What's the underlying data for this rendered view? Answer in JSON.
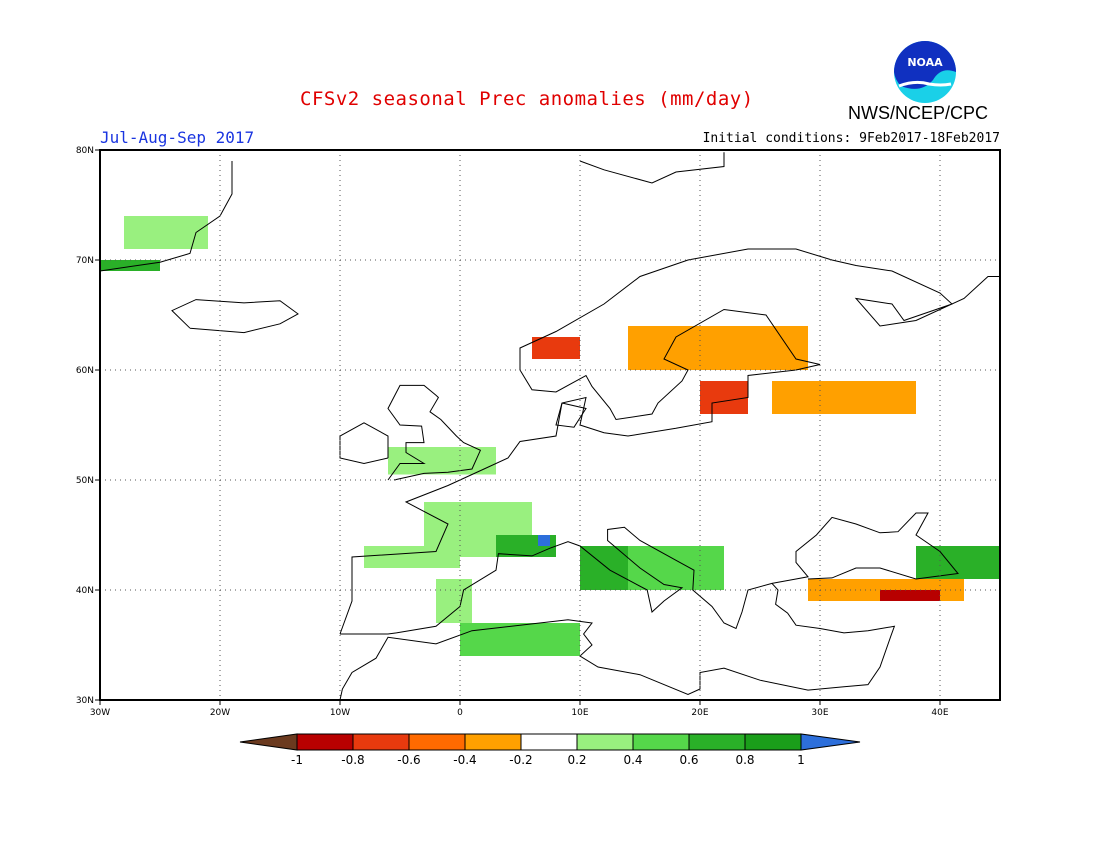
{
  "title": "CFSv2 seasonal Prec anomalies (mm/day)",
  "period": "Jul-Aug-Sep 2017",
  "initial_conditions": "Initial conditions: 9Feb2017-18Feb2017",
  "agency": "NWS/NCEP/CPC",
  "logo": {
    "text": "NOAA",
    "icon": "noaa-logo"
  },
  "map": {
    "lon_range": [
      -30,
      45
    ],
    "lat_range": [
      30,
      80
    ],
    "lat_ticks": [
      {
        "value": 80,
        "label": "80N"
      },
      {
        "value": 70,
        "label": "70N"
      },
      {
        "value": 60,
        "label": "60N"
      },
      {
        "value": 50,
        "label": "50N"
      },
      {
        "value": 40,
        "label": "40N"
      },
      {
        "value": 30,
        "label": "30N"
      }
    ],
    "lon_ticks": [
      {
        "value": -30,
        "label": "30W"
      },
      {
        "value": -20,
        "label": "20W"
      },
      {
        "value": -10,
        "label": "10W"
      },
      {
        "value": 0,
        "label": "0"
      },
      {
        "value": 10,
        "label": "10E"
      },
      {
        "value": 20,
        "label": "20E"
      },
      {
        "value": 30,
        "label": "30E"
      },
      {
        "value": 40,
        "label": "40E"
      }
    ],
    "grid": "dotted",
    "anomaly_regions": [
      {
        "name": "greenland-east",
        "level": 0.3,
        "lon": [
          -28,
          -21
        ],
        "lat": [
          71,
          74
        ]
      },
      {
        "name": "greenland-se",
        "level": 0.7,
        "lon": [
          -30,
          -25
        ],
        "lat": [
          69,
          70
        ]
      },
      {
        "name": "british-isles",
        "level": 0.3,
        "lon": [
          -6,
          3
        ],
        "lat": [
          50.5,
          53
        ]
      },
      {
        "name": "france",
        "level": 0.3,
        "lon": [
          -3,
          6
        ],
        "lat": [
          43,
          48
        ]
      },
      {
        "name": "gulf-of-lion",
        "level": 0.7,
        "lon": [
          3,
          8
        ],
        "lat": [
          43,
          45
        ]
      },
      {
        "name": "alps-point",
        "level": 1.05,
        "lon": [
          6.5,
          7.5
        ],
        "lat": [
          44,
          45
        ]
      },
      {
        "name": "iberia-north",
        "level": 0.3,
        "lon": [
          -8,
          0
        ],
        "lat": [
          42,
          44
        ]
      },
      {
        "name": "iberia-south",
        "level": 0.3,
        "lon": [
          -2,
          1
        ],
        "lat": [
          37,
          41
        ]
      },
      {
        "name": "italy",
        "level": 0.7,
        "lon": [
          10,
          14
        ],
        "lat": [
          40,
          44
        ]
      },
      {
        "name": "balkans",
        "level": 0.5,
        "lon": [
          14,
          22
        ],
        "lat": [
          40,
          44
        ]
      },
      {
        "name": "north-africa",
        "level": 0.5,
        "lon": [
          0,
          10
        ],
        "lat": [
          34,
          37
        ]
      },
      {
        "name": "caucasus",
        "level": 0.7,
        "lon": [
          38,
          45
        ],
        "lat": [
          41,
          44
        ]
      },
      {
        "name": "norway-coast",
        "level": -0.7,
        "lon": [
          6,
          10
        ],
        "lat": [
          61,
          63
        ]
      },
      {
        "name": "scandinavia",
        "level": -0.3,
        "lon": [
          14,
          29
        ],
        "lat": [
          60,
          64
        ]
      },
      {
        "name": "baltic",
        "level": -0.7,
        "lon": [
          20,
          24
        ],
        "lat": [
          56,
          59
        ]
      },
      {
        "name": "russia-west",
        "level": -0.3,
        "lon": [
          26,
          38
        ],
        "lat": [
          56,
          59
        ]
      },
      {
        "name": "turkey",
        "level": -0.3,
        "lon": [
          29,
          42
        ],
        "lat": [
          39,
          41
        ]
      },
      {
        "name": "turkey-core",
        "level": -0.8,
        "lon": [
          35,
          40
        ],
        "lat": [
          39,
          40
        ]
      }
    ]
  },
  "legend": {
    "levels": [
      "-1",
      "-0.8",
      "-0.6",
      "-0.4",
      "-0.2",
      "0.2",
      "0.4",
      "0.6",
      "0.8",
      "1"
    ],
    "colors": [
      "#6b3a1f",
      "#b80000",
      "#e83a0e",
      "#ff6a00",
      "#ffa000",
      "#ffffff",
      "#99f07f",
      "#55d74a",
      "#2ab028",
      "#1a9e1a",
      "#2d6fdb"
    ]
  }
}
